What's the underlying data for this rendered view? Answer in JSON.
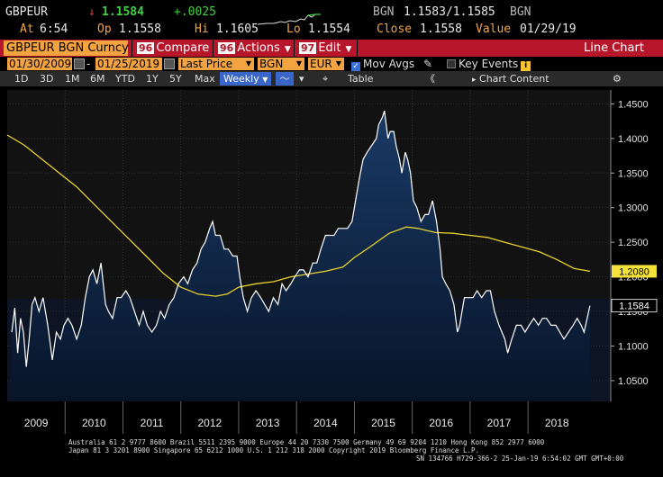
{
  "ticker": "GBPEUR",
  "last_price": "1.1584",
  "arrow": "↓",
  "change": "+.0025",
  "quote_source": "BGN",
  "bid_ask": "1.1583/1.1585",
  "quote_source2": "BGN",
  "time_label": "At",
  "time": "6:54",
  "open_label": "Op",
  "open": "1.1558",
  "high_label": "Hi",
  "high": "1.1605",
  "low_label": "Lo",
  "low": "1.1554",
  "close_label": "Close",
  "close": "1.1558",
  "value_label": "Value",
  "value_date": "01/29/19",
  "toolbar": {
    "security": "GBPEUR BGN Curncy",
    "compare_key": "96",
    "compare": "Compare",
    "actions_key": "96",
    "actions": "Actions",
    "edit_key": "97",
    "edit": "Edit",
    "chart_type": "Line Chart"
  },
  "params": {
    "start_date": "01/30/2009",
    "end_date": "01/25/2019",
    "field": "Last Price",
    "source": "BGN",
    "currency": "EUR",
    "mov_avgs": "Mov Avgs",
    "key_events": "Key Events"
  },
  "range_bar": {
    "ranges": [
      "1D",
      "3D",
      "1M",
      "6M",
      "YTD",
      "1Y",
      "5Y",
      "Max"
    ],
    "period": "Weekly",
    "table": "Table",
    "chart_content": "Chart Content"
  },
  "colors": {
    "price_line": "#ffffff",
    "ma_line": "#e9d22a",
    "area_top": "#0f2a4e",
    "area_bottom": "#08162c",
    "plot_bg": "#121212",
    "accent_orange": "#f4a341",
    "toolbar_red": "#b7152a"
  },
  "chart_data": {
    "type": "line",
    "x_range": [
      "2009-01-30",
      "2019-01-25"
    ],
    "ylim": [
      1.02,
      1.47
    ],
    "y_ticks": [
      "1.4500",
      "1.4000",
      "1.3500",
      "1.3000",
      "1.2500",
      "1.2000",
      "1.1500",
      "1.1000",
      "1.0500"
    ],
    "x_labels": [
      "2009",
      "2010",
      "2011",
      "2012",
      "2013",
      "2014",
      "2015",
      "2016",
      "2017",
      "2018"
    ],
    "last_price_label": "1.1584",
    "ma_label": "1.2080",
    "series": [
      {
        "values": [
          [
            2009.08,
            1.12
          ],
          [
            2009.13,
            1.155
          ],
          [
            2009.18,
            1.09
          ],
          [
            2009.23,
            1.14
          ],
          [
            2009.28,
            1.12
          ],
          [
            2009.33,
            1.07
          ],
          [
            2009.38,
            1.11
          ],
          [
            2009.43,
            1.16
          ],
          [
            2009.48,
            1.17
          ],
          [
            2009.55,
            1.15
          ],
          [
            2009.62,
            1.17
          ],
          [
            2009.7,
            1.13
          ],
          [
            2009.78,
            1.08
          ],
          [
            2009.85,
            1.12
          ],
          [
            2009.92,
            1.11
          ],
          [
            2009.98,
            1.13
          ],
          [
            2010.05,
            1.14
          ],
          [
            2010.12,
            1.13
          ],
          [
            2010.2,
            1.11
          ],
          [
            2010.28,
            1.13
          ],
          [
            2010.35,
            1.17
          ],
          [
            2010.42,
            1.2
          ],
          [
            2010.48,
            1.21
          ],
          [
            2010.55,
            1.19
          ],
          [
            2010.62,
            1.22
          ],
          [
            2010.7,
            1.16
          ],
          [
            2010.75,
            1.15
          ],
          [
            2010.82,
            1.14
          ],
          [
            2010.9,
            1.17
          ],
          [
            2010.97,
            1.17
          ],
          [
            2011.05,
            1.18
          ],
          [
            2011.12,
            1.17
          ],
          [
            2011.2,
            1.15
          ],
          [
            2011.28,
            1.13
          ],
          [
            2011.35,
            1.15
          ],
          [
            2011.42,
            1.13
          ],
          [
            2011.5,
            1.12
          ],
          [
            2011.58,
            1.13
          ],
          [
            2011.65,
            1.15
          ],
          [
            2011.72,
            1.14
          ],
          [
            2011.8,
            1.16
          ],
          [
            2011.88,
            1.17
          ],
          [
            2011.96,
            1.19
          ],
          [
            2012.05,
            1.2
          ],
          [
            2012.12,
            1.19
          ],
          [
            2012.2,
            1.21
          ],
          [
            2012.28,
            1.22
          ],
          [
            2012.35,
            1.24
          ],
          [
            2012.42,
            1.25
          ],
          [
            2012.5,
            1.27
          ],
          [
            2012.55,
            1.28
          ],
          [
            2012.6,
            1.26
          ],
          [
            2012.68,
            1.26
          ],
          [
            2012.75,
            1.24
          ],
          [
            2012.82,
            1.24
          ],
          [
            2012.9,
            1.23
          ],
          [
            2012.97,
            1.23
          ],
          [
            2013.02,
            1.2
          ],
          [
            2013.08,
            1.17
          ],
          [
            2013.15,
            1.15
          ],
          [
            2013.22,
            1.17
          ],
          [
            2013.3,
            1.18
          ],
          [
            2013.38,
            1.17
          ],
          [
            2013.45,
            1.16
          ],
          [
            2013.52,
            1.15
          ],
          [
            2013.6,
            1.17
          ],
          [
            2013.68,
            1.16
          ],
          [
            2013.75,
            1.19
          ],
          [
            2013.82,
            1.18
          ],
          [
            2013.9,
            1.19
          ],
          [
            2013.97,
            1.2
          ],
          [
            2014.05,
            1.21
          ],
          [
            2014.12,
            1.21
          ],
          [
            2014.2,
            1.2
          ],
          [
            2014.28,
            1.22
          ],
          [
            2014.35,
            1.22
          ],
          [
            2014.42,
            1.24
          ],
          [
            2014.5,
            1.26
          ],
          [
            2014.58,
            1.26
          ],
          [
            2014.65,
            1.26
          ],
          [
            2014.72,
            1.27
          ],
          [
            2014.8,
            1.27
          ],
          [
            2014.88,
            1.27
          ],
          [
            2014.96,
            1.28
          ],
          [
            2015.02,
            1.31
          ],
          [
            2015.08,
            1.34
          ],
          [
            2015.15,
            1.37
          ],
          [
            2015.22,
            1.38
          ],
          [
            2015.3,
            1.39
          ],
          [
            2015.38,
            1.4
          ],
          [
            2015.42,
            1.42
          ],
          [
            2015.48,
            1.43
          ],
          [
            2015.52,
            1.44
          ],
          [
            2015.58,
            1.4
          ],
          [
            2015.62,
            1.41
          ],
          [
            2015.68,
            1.41
          ],
          [
            2015.72,
            1.39
          ],
          [
            2015.78,
            1.37
          ],
          [
            2015.82,
            1.35
          ],
          [
            2015.88,
            1.38
          ],
          [
            2015.92,
            1.37
          ],
          [
            2015.97,
            1.35
          ],
          [
            2016.02,
            1.31
          ],
          [
            2016.08,
            1.3
          ],
          [
            2016.15,
            1.28
          ],
          [
            2016.22,
            1.29
          ],
          [
            2016.28,
            1.29
          ],
          [
            2016.35,
            1.31
          ],
          [
            2016.42,
            1.28
          ],
          [
            2016.48,
            1.24
          ],
          [
            2016.52,
            1.2
          ],
          [
            2016.58,
            1.19
          ],
          [
            2016.65,
            1.18
          ],
          [
            2016.72,
            1.16
          ],
          [
            2016.78,
            1.12
          ],
          [
            2016.82,
            1.13
          ],
          [
            2016.9,
            1.17
          ],
          [
            2016.96,
            1.17
          ],
          [
            2017.05,
            1.17
          ],
          [
            2017.12,
            1.18
          ],
          [
            2017.2,
            1.17
          ],
          [
            2017.28,
            1.18
          ],
          [
            2017.35,
            1.18
          ],
          [
            2017.42,
            1.15
          ],
          [
            2017.5,
            1.13
          ],
          [
            2017.55,
            1.12
          ],
          [
            2017.6,
            1.11
          ],
          [
            2017.65,
            1.09
          ],
          [
            2017.72,
            1.11
          ],
          [
            2017.8,
            1.13
          ],
          [
            2017.88,
            1.13
          ],
          [
            2017.95,
            1.12
          ],
          [
            2018.02,
            1.13
          ],
          [
            2018.1,
            1.14
          ],
          [
            2018.18,
            1.13
          ],
          [
            2018.25,
            1.14
          ],
          [
            2018.32,
            1.14
          ],
          [
            2018.4,
            1.13
          ],
          [
            2018.48,
            1.13
          ],
          [
            2018.55,
            1.12
          ],
          [
            2018.62,
            1.11
          ],
          [
            2018.7,
            1.12
          ],
          [
            2018.78,
            1.13
          ],
          [
            2018.85,
            1.14
          ],
          [
            2018.92,
            1.13
          ],
          [
            2018.97,
            1.12
          ],
          [
            2019.07,
            1.1584
          ]
        ]
      },
      {
        "values": [
          [
            2009.0,
            1.405
          ],
          [
            2009.3,
            1.39
          ],
          [
            2009.6,
            1.37
          ],
          [
            2009.9,
            1.35
          ],
          [
            2010.2,
            1.33
          ],
          [
            2010.5,
            1.305
          ],
          [
            2010.8,
            1.28
          ],
          [
            2011.1,
            1.255
          ],
          [
            2011.4,
            1.23
          ],
          [
            2011.7,
            1.205
          ],
          [
            2012.0,
            1.185
          ],
          [
            2012.3,
            1.175
          ],
          [
            2012.6,
            1.172
          ],
          [
            2012.8,
            1.175
          ],
          [
            2013.0,
            1.185
          ],
          [
            2013.3,
            1.19
          ],
          [
            2013.6,
            1.193
          ],
          [
            2013.9,
            1.2
          ],
          [
            2014.2,
            1.204
          ],
          [
            2014.5,
            1.208
          ],
          [
            2014.8,
            1.214
          ],
          [
            2015.0,
            1.228
          ],
          [
            2015.3,
            1.245
          ],
          [
            2015.6,
            1.263
          ],
          [
            2015.9,
            1.272
          ],
          [
            2016.1,
            1.27
          ],
          [
            2016.4,
            1.264
          ],
          [
            2016.7,
            1.263
          ],
          [
            2017.0,
            1.26
          ],
          [
            2017.3,
            1.257
          ],
          [
            2017.6,
            1.25
          ],
          [
            2017.9,
            1.243
          ],
          [
            2018.2,
            1.236
          ],
          [
            2018.5,
            1.225
          ],
          [
            2018.8,
            1.212
          ],
          [
            2019.07,
            1.208
          ]
        ]
      }
    ]
  },
  "footer": {
    "line1": "Australia 61 2 9777 8600 Brazil 5511 2395 9000 Europe 44 20 7330 7500 Germany 49 69 9204 1210 Hong Kong 852 2977 6000",
    "line2": "Japan 81 3 3201 8900     Singapore 65 6212 1000     U.S. 1 212 318 2000         Copyright 2019 Bloomberg Finance L.P.",
    "line3": "SN 134766 H729-366-2 25-Jan-19  6:54:02 GMT  GMT+0:00"
  }
}
